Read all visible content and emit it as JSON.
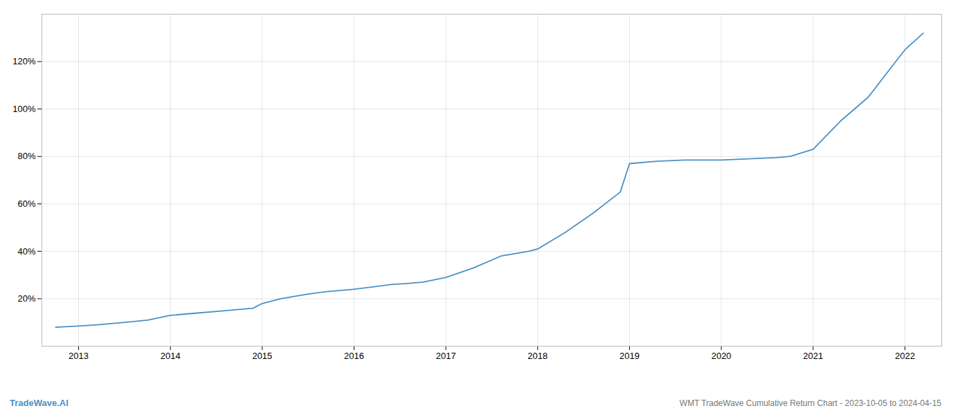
{
  "chart_data": {
    "type": "line",
    "title": "WMT TradeWave Cumulative Return Chart - 2023-10-05 to 2024-04-15",
    "annotations": [
      {
        "text": "TradeWave.AI",
        "color": "#4a90c4"
      }
    ],
    "x": [
      2012.75,
      2013.0,
      2013.2,
      2013.5,
      2013.75,
      2014.0,
      2014.3,
      2014.6,
      2014.9,
      2015.0,
      2015.2,
      2015.5,
      2015.7,
      2016.0,
      2016.2,
      2016.4,
      2016.6,
      2016.75,
      2017.0,
      2017.3,
      2017.6,
      2017.9,
      2018.0,
      2018.3,
      2018.6,
      2018.9,
      2019.0,
      2019.3,
      2019.6,
      2019.9,
      2020.0,
      2020.3,
      2020.6,
      2020.75,
      2021.0,
      2021.3,
      2021.6,
      2021.9,
      2022.0,
      2022.2
    ],
    "values": [
      8,
      8.5,
      9.0,
      10,
      11,
      13,
      14,
      15,
      16,
      18,
      20,
      22,
      23,
      24,
      25,
      26,
      26.5,
      27,
      29,
      33,
      38,
      40,
      41,
      48,
      56,
      65,
      77,
      78,
      78.5,
      78.5,
      78.5,
      79,
      79.5,
      80,
      83,
      95,
      105,
      120,
      125,
      132
    ],
    "color": "#4a90c4",
    "xlim": [
      2012.6,
      2022.4
    ],
    "ylim": [
      0,
      140
    ],
    "xticks": [
      2013,
      2014,
      2015,
      2016,
      2017,
      2018,
      2019,
      2020,
      2021,
      2022
    ],
    "yticks": [
      {
        "value": 20,
        "label": "20%"
      },
      {
        "value": 40,
        "label": "40%"
      },
      {
        "value": 60,
        "label": "60%"
      },
      {
        "value": 80,
        "label": "80%"
      },
      {
        "value": 100,
        "label": "100%"
      },
      {
        "value": 120,
        "label": "120%"
      }
    ],
    "grid": true
  }
}
